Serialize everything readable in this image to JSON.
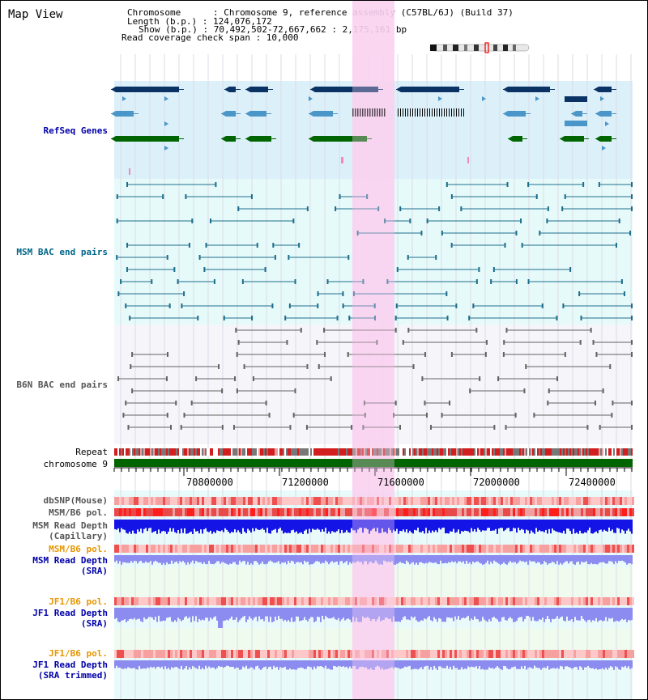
{
  "title": "Map View",
  "info": {
    "chromosome": "Chromosome      : Chromosome 9, reference assembly (C57BL/6J) (Build 37)",
    "length": "Length (b.p.) : 124,076,172",
    "show": "Show (b.p.) : 70,492,502-72,667,662 : 2,175,161 bp",
    "coverage": "Read coverage check span : 10,000"
  },
  "tracks": {
    "refseq": "RefSeq Genes",
    "msm_bac": "MSM BAC end pairs",
    "b6n_bac": "B6N BAC end pairs",
    "repeat": "Repeat",
    "chromosome": "chromosome 9",
    "dbsnp": "dbSNP(Mouse)",
    "msm_b6_pol_1": "MSM/B6 pol.",
    "msm_read_depth_cap_1": "MSM Read Depth",
    "msm_read_depth_cap_2": "(Capillary)",
    "msm_b6_pol_2": "MSM/B6 pol.",
    "msm_read_depth_sra_1": "MSM Read Depth",
    "msm_read_depth_sra_2": "(SRA)",
    "jf1_b6_pol_1": "JF1/B6 pol.",
    "jf1_read_depth_sra_1": "JF1 Read Depth",
    "jf1_read_depth_sra_2": "(SRA)",
    "jf1_b6_pol_2": "JF1/B6 pol.",
    "jf1_read_depth_trim_1": "JF1 Read Depth",
    "jf1_read_depth_trim_2": "(SRA trimmed)"
  },
  "axis_ticks": [
    "70800000",
    "71200000",
    "71600000",
    "72000000",
    "72400000"
  ],
  "colors": {
    "refseq_bg": "#dcf0fa",
    "msm_bac_bg": "#e6fafa",
    "b6n_bac_bg": "#f5f5fa",
    "highlight": "#fad2f0",
    "gene_dark": "#0a3264",
    "gene_light": "#4a96c8",
    "gene_green": "#006400",
    "msm_bac_line": "#1e6e8c",
    "b6n_bac_line": "#646464",
    "chromosome": "#006400",
    "depth_blue": "#1414e6",
    "depth_sra": "#8c8cf0",
    "label_blue": "#0000aa",
    "label_teal": "#006688",
    "label_orange": "#e69600",
    "label_grey": "#555555"
  }
}
